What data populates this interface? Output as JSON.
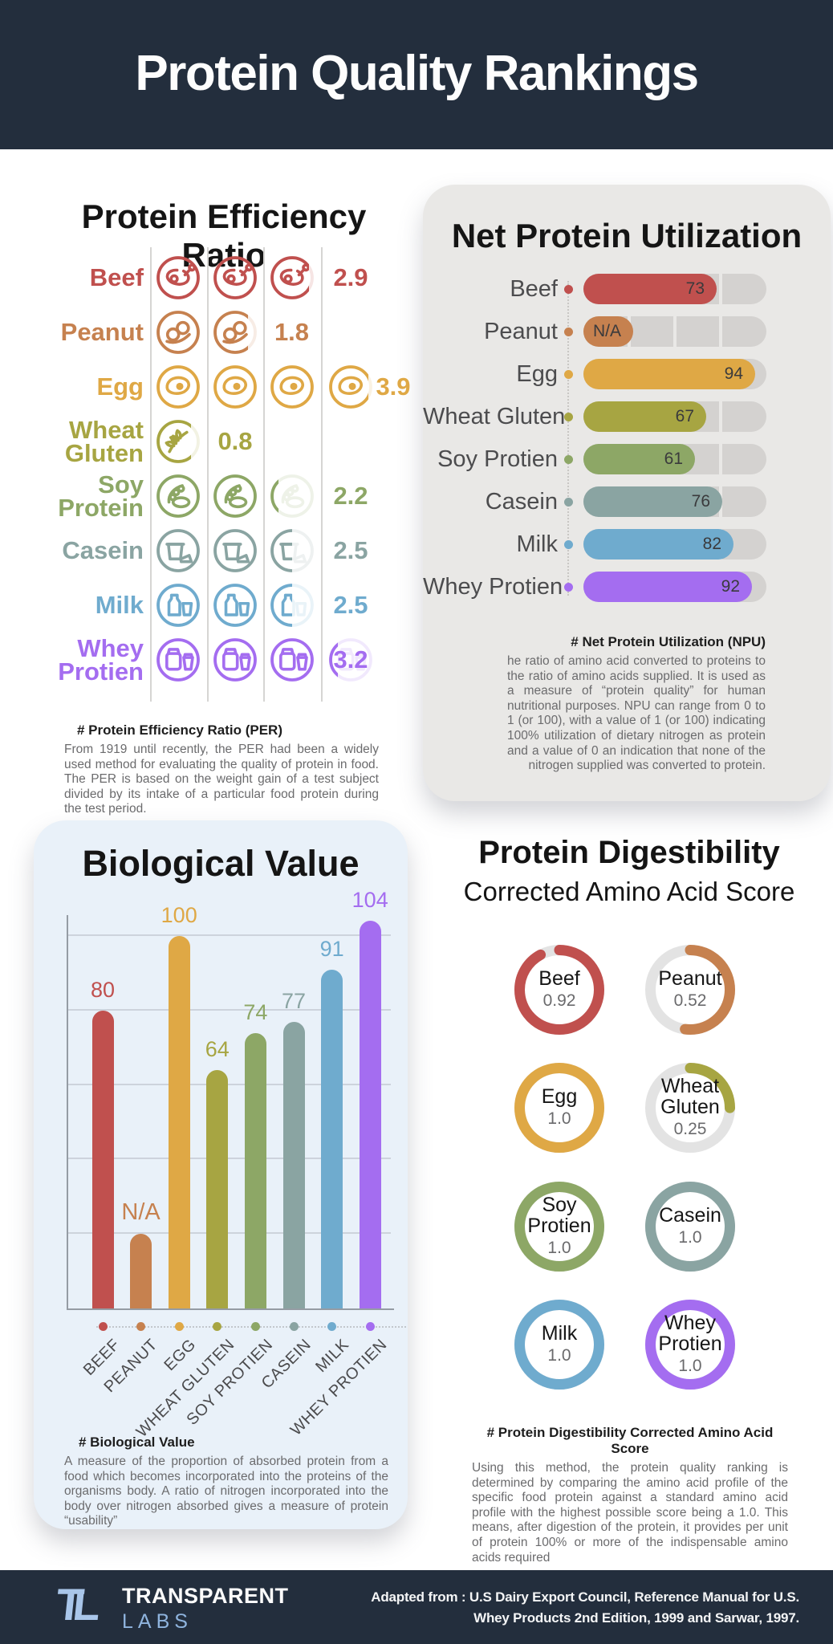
{
  "header": {
    "title": "Protein Quality Rankings"
  },
  "chart_data": [
    {
      "id": "per",
      "type": "pictogram",
      "title": "Protein Efficiency Ratio",
      "categories": [
        "Beef",
        "Peanut",
        "Egg",
        "Wheat Gluten",
        "Soy Protein",
        "Casein",
        "Milk",
        "Whey Protien"
      ],
      "values": [
        2.9,
        1.8,
        3.9,
        0.8,
        2.2,
        2.5,
        2.5,
        3.2
      ],
      "display": [
        "2.9",
        "1.8",
        "3.9",
        "0.8",
        "2.2",
        "2.5",
        "2.5",
        "3.2"
      ],
      "icons": [
        "meat-icon",
        "peanut-icon",
        "egg-icon",
        "wheat-icon",
        "soy-icon",
        "yogurt-icon",
        "milk-icon",
        "shaker-icon"
      ],
      "colors": [
        "#c0504e",
        "#c6814f",
        "#dfa845",
        "#a7a542",
        "#8da766",
        "#8aa4a2",
        "#6fabce",
        "#a46df0"
      ],
      "value_slots": [
        4,
        3,
        5,
        2,
        4,
        4,
        4,
        4
      ],
      "footnote_title": "# Protein Efficiency Ratio (PER)",
      "footnote": "From 1919 until recently, the PER had been a widely used method for evaluating the quality of protein in food. The PER is based on the weight gain of a test subject divided by its intake of a particular food protein during the test period."
    },
    {
      "id": "npu",
      "type": "bar",
      "orientation": "horizontal",
      "title": "Net Protein Utilization",
      "categories": [
        "Beef",
        "Peanut",
        "Egg",
        "Wheat Gluten",
        "Soy Protien",
        "Casein",
        "Milk",
        "Whey Protien"
      ],
      "values": [
        73,
        null,
        94,
        67,
        61,
        76,
        82,
        92
      ],
      "display": [
        "73",
        "N/A",
        "94",
        "67",
        "61",
        "76",
        "82",
        "92"
      ],
      "xlim": [
        0,
        100
      ],
      "na_bar_pct": 27,
      "colors": [
        "#c0504e",
        "#c6814f",
        "#dfa845",
        "#a7a542",
        "#8da766",
        "#8aa4a2",
        "#6fabce",
        "#a46df0"
      ],
      "footnote_title": "# Net Protein Utilization (NPU)",
      "footnote": "he ratio of amino acid converted to proteins to the ratio of amino acids supplied. It is used as a measure of “protein quality” for human nutritional purposes. NPU can range from 0 to 1 (or 100), with a value of 1 (or 100) indicating 100% utilization of dietary nitrogen as protein and a value of 0 an indication that none of the nitrogen supplied was converted to protein."
    },
    {
      "id": "bv",
      "type": "bar",
      "orientation": "vertical",
      "title": "Biological Value",
      "categories": [
        "BEEF",
        "PEANUT",
        "EGG",
        "WHEAT GLUTEN",
        "SOY PROTIEN",
        "CASEIN",
        "MILK",
        "WHEY PROTIEN"
      ],
      "values": [
        80,
        null,
        100,
        64,
        74,
        77,
        91,
        104
      ],
      "display": [
        "80",
        "N/A",
        "100",
        "64",
        "74",
        "77",
        "91",
        "104"
      ],
      "ylim": [
        0,
        104
      ],
      "gridlines": [
        20,
        40,
        60,
        80,
        100
      ],
      "grid": true,
      "na_bar_value": 20,
      "colors": [
        "#c0504e",
        "#c6814f",
        "#dfa845",
        "#a7a542",
        "#8da766",
        "#8aa4a2",
        "#6fabce",
        "#a46df0"
      ],
      "footnote_title": "# Biological Value",
      "footnote": "A measure of the proportion of absorbed protein from a food which becomes incorporated into the proteins of the organisms body. A ratio of nitrogen incorporated into the body over nitrogen absorbed gives a measure of protein “usability”"
    },
    {
      "id": "pdcaas",
      "type": "donut-grid",
      "title": "Protein Digestibility",
      "subtitle": "Corrected Amino Acid Score",
      "categories": [
        "Beef",
        "Peanut",
        "Egg",
        "Wheat Gluten",
        "Soy Protien",
        "Casein",
        "Milk",
        "Whey Protien"
      ],
      "values": [
        0.92,
        0.52,
        1.0,
        0.25,
        1.0,
        1.0,
        1.0,
        1.0
      ],
      "display": [
        "0.92",
        "0.52",
        "1.0",
        "0.25",
        "1.0",
        "1.0",
        "1.0",
        "1.0"
      ],
      "ring_track_color": "#e3e3e3",
      "colors": [
        "#c0504e",
        "#c6814f",
        "#dfa845",
        "#a7a542",
        "#8da766",
        "#8aa4a2",
        "#6fabce",
        "#a46df0"
      ],
      "footnote_title": "# Protein Digestibility Corrected Amino Acid Score",
      "footnote": "Using this method, the protein quality ranking is determined by comparing the amino acid profile of the specific food protein against a standard amino acid profile with the highest possible score being a 1.0.  This means, after digestion of the protein, it provides per unit of protein 100% or more of the indispensable amino acids required"
    }
  ],
  "footer": {
    "logo": "TL",
    "brand_line1": "TRANSPARENT",
    "brand_line2": "LABS",
    "credit_line1": "Adapted from : U.S Dairy Export Council, Reference Manual for U.S.",
    "credit_line2": "Whey Products 2nd Edition, 1999 and Sarwar, 1997."
  },
  "theme": {
    "navy": "#232e3d",
    "npu_card_bg": "#e9e8e6",
    "bv_card_bg": "#e9f1f9",
    "track_gray": "#d4d2d0",
    "text_gray": "#6b6b6d",
    "label_gray": "#4c4c4e"
  }
}
